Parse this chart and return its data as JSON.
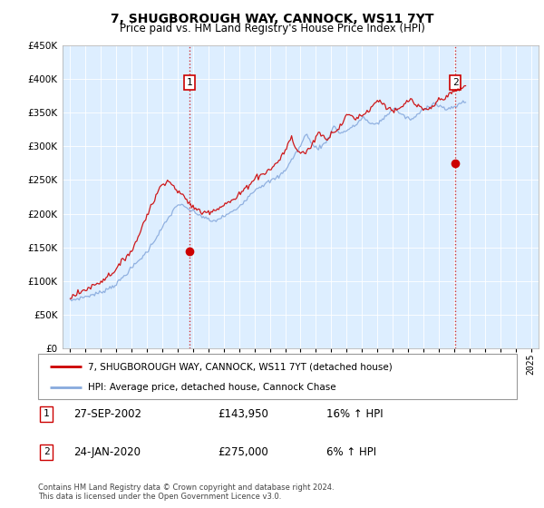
{
  "title": "7, SHUGBOROUGH WAY, CANNOCK, WS11 7YT",
  "subtitle": "Price paid vs. HM Land Registry's House Price Index (HPI)",
  "legend_line1": "7, SHUGBOROUGH WAY, CANNOCK, WS11 7YT (detached house)",
  "legend_line2": "HPI: Average price, detached house, Cannock Chase",
  "table_rows": [
    {
      "num": "1",
      "date": "27-SEP-2002",
      "price": "£143,950",
      "hpi": "16% ↑ HPI"
    },
    {
      "num": "2",
      "date": "24-JAN-2020",
      "price": "£275,000",
      "hpi": "6% ↑ HPI"
    }
  ],
  "footnote1": "Contains HM Land Registry data © Crown copyright and database right 2024.",
  "footnote2": "This data is licensed under the Open Government Licence v3.0.",
  "red_color": "#cc0000",
  "blue_color": "#88aadd",
  "chart_bg": "#ddeeff",
  "marker1_x": 2002.75,
  "marker1_y": 143950,
  "marker2_x": 2020.07,
  "marker2_y": 275000,
  "ylim_min": 0,
  "ylim_max": 450000,
  "xlim_min": 1994.5,
  "xlim_max": 2025.5,
  "yticks": [
    0,
    50000,
    100000,
    150000,
    200000,
    250000,
    300000,
    350000,
    400000,
    450000
  ],
  "hpi_monthly": [
    70000,
    71000,
    71500,
    72000,
    72500,
    73000,
    73500,
    74000,
    74500,
    75000,
    75500,
    76000,
    76500,
    77000,
    77500,
    78000,
    78500,
    79000,
    79500,
    80000,
    80500,
    81000,
    81500,
    82000,
    83000,
    84000,
    85000,
    86000,
    87000,
    88000,
    89000,
    90000,
    91000,
    92000,
    93000,
    94000,
    95000,
    97000,
    99000,
    101000,
    103000,
    105000,
    107000,
    109000,
    111000,
    113000,
    115000,
    117000,
    119000,
    121000,
    123000,
    125000,
    127000,
    129000,
    131000,
    133000,
    135000,
    137000,
    139000,
    141000,
    143000,
    146000,
    149000,
    152000,
    155000,
    158000,
    161000,
    164000,
    167000,
    170000,
    173000,
    176000,
    179000,
    182000,
    185000,
    188000,
    191000,
    194000,
    197000,
    200000,
    203000,
    206000,
    209000,
    212000,
    213000,
    214000,
    213000,
    212000,
    211000,
    210000,
    209000,
    208000,
    207000,
    206000,
    205000,
    204000,
    203000,
    202000,
    201000,
    200000,
    199000,
    198000,
    197000,
    196000,
    195000,
    194000,
    193000,
    192000,
    191000,
    190000,
    189000,
    188000,
    188500,
    189000,
    190000,
    191000,
    192000,
    193000,
    194000,
    195000,
    196000,
    197000,
    198000,
    199000,
    200000,
    201000,
    202000,
    203000,
    204000,
    205000,
    207000,
    209000,
    211000,
    213000,
    215000,
    217000,
    219000,
    221000,
    223000,
    225000,
    227000,
    229000,
    231000,
    233000,
    235000,
    237000,
    238000,
    239000,
    240000,
    241000,
    242000,
    243000,
    244000,
    245000,
    246000,
    247000,
    248000,
    249000,
    250000,
    251000,
    252000,
    253000,
    254000,
    255000,
    257000,
    259000,
    261000,
    263000,
    265000,
    268000,
    271000,
    274000,
    277000,
    280000,
    283000,
    286000,
    289000,
    292000,
    295000,
    298000,
    301000,
    305000,
    309000,
    313000,
    317000,
    321000,
    315000,
    310000,
    306000,
    303000,
    301000,
    300000,
    299000,
    298000,
    298000,
    299000,
    300000,
    301000,
    303000,
    305000,
    308000,
    311000,
    314000,
    318000,
    322000,
    326000,
    330000,
    328000,
    326000,
    324000,
    322000,
    320000,
    320000,
    321000,
    322000,
    323000,
    324000,
    325000,
    326000,
    327000,
    328000,
    329000,
    330000,
    332000,
    334000,
    336000,
    338000,
    340000,
    342000,
    344000,
    342000,
    340000,
    338000,
    336000,
    334000,
    332000,
    333000,
    334000,
    334000,
    334000,
    335000,
    336000,
    337000,
    338000,
    340000,
    342000,
    344000,
    346000,
    348000,
    350000,
    352000,
    354000,
    355000,
    356000,
    357000,
    355000,
    353000,
    351000,
    349000,
    347000,
    346000,
    345000,
    344000,
    343000,
    342000,
    341000,
    340000,
    341000,
    342000,
    343000,
    344000,
    346000,
    348000,
    350000,
    352000,
    354000,
    356000,
    357000,
    358000,
    359000,
    360000,
    361000,
    362000,
    363000,
    364000,
    364000,
    363000,
    362000,
    361000,
    360000,
    359000,
    358000,
    357000,
    356000,
    355000,
    354000,
    355000,
    356000,
    357000,
    358000,
    359000,
    360000,
    361000,
    362000,
    363000,
    364000,
    365000,
    366000,
    367000,
    368000
  ],
  "red_monthly": [
    75000,
    76000,
    77000,
    78000,
    79000,
    80000,
    81000,
    82000,
    83000,
    84000,
    85000,
    86000,
    87000,
    88000,
    89000,
    90000,
    91000,
    92000,
    93000,
    94000,
    95000,
    96000,
    97000,
    98000,
    99000,
    100500,
    102000,
    103500,
    105000,
    106500,
    108000,
    109500,
    111000,
    112500,
    114000,
    115500,
    117000,
    119500,
    122000,
    124500,
    127000,
    129500,
    132000,
    134500,
    137000,
    139500,
    142000,
    143950,
    143950,
    148000,
    152000,
    156000,
    160000,
    165000,
    170000,
    175000,
    180000,
    185000,
    190000,
    195000,
    198000,
    202000,
    206000,
    210000,
    214000,
    218000,
    222000,
    226000,
    230000,
    234000,
    238000,
    242000,
    244000,
    246000,
    248000,
    249000,
    250000,
    248000,
    246000,
    244000,
    242000,
    240000,
    238000,
    236000,
    234000,
    232000,
    230000,
    228000,
    226000,
    224000,
    222000,
    220000,
    218000,
    216000,
    214000,
    212000,
    210000,
    208000,
    207000,
    206000,
    205000,
    204000,
    203000,
    202000,
    202000,
    202000,
    202500,
    203000,
    203500,
    204000,
    204500,
    205000,
    205500,
    206000,
    207000,
    208000,
    209000,
    210000,
    211000,
    212000,
    213000,
    214000,
    215000,
    216000,
    217000,
    218000,
    219000,
    220000,
    221000,
    222000,
    224000,
    226000,
    228000,
    230000,
    232000,
    234000,
    236000,
    238000,
    240000,
    242000,
    244000,
    246000,
    248000,
    250000,
    252000,
    254000,
    255000,
    256000,
    257000,
    258000,
    259000,
    260000,
    261000,
    262000,
    263000,
    264000,
    265000,
    267000,
    269000,
    271000,
    273000,
    275000,
    277000,
    279000,
    282000,
    285000,
    288000,
    291000,
    294000,
    298000,
    302000,
    306000,
    310000,
    314000,
    308000,
    303000,
    299000,
    296000,
    293000,
    292000,
    291000,
    290000,
    290500,
    291000,
    292000,
    293000,
    295000,
    297000,
    300000,
    303000,
    306000,
    310000,
    314000,
    318000,
    323000,
    320000,
    318000,
    316000,
    314000,
    312000,
    312000,
    313000,
    315000,
    317000,
    319000,
    321000,
    323000,
    324000,
    325000,
    326000,
    328000,
    330000,
    333000,
    336000,
    339000,
    342000,
    345000,
    348000,
    347000,
    346000,
    345000,
    344000,
    343000,
    342000,
    343000,
    344000,
    345000,
    346000,
    347000,
    348000,
    349000,
    350000,
    352000,
    354000,
    356000,
    358000,
    360000,
    362000,
    364000,
    366000,
    367000,
    368000,
    369000,
    367000,
    365000,
    363000,
    361000,
    359000,
    358000,
    357000,
    356000,
    355000,
    354000,
    353000,
    352000,
    353000,
    354000,
    355000,
    356000,
    358000,
    360000,
    362000,
    364000,
    366000,
    368000,
    369000,
    370000,
    368000,
    366000,
    364000,
    362000,
    360000,
    359000,
    358000,
    357000,
    356000,
    355000,
    354000,
    353000,
    354000,
    355000,
    356000,
    357000,
    359000,
    361000,
    363000,
    365000,
    367000,
    369000,
    370000,
    371000,
    372000,
    373000,
    374000,
    375000,
    376000,
    377000,
    378000,
    379000,
    380000,
    381000,
    382000,
    383000,
    384000,
    385000,
    386000,
    387000,
    388000,
    389000,
    390000
  ]
}
